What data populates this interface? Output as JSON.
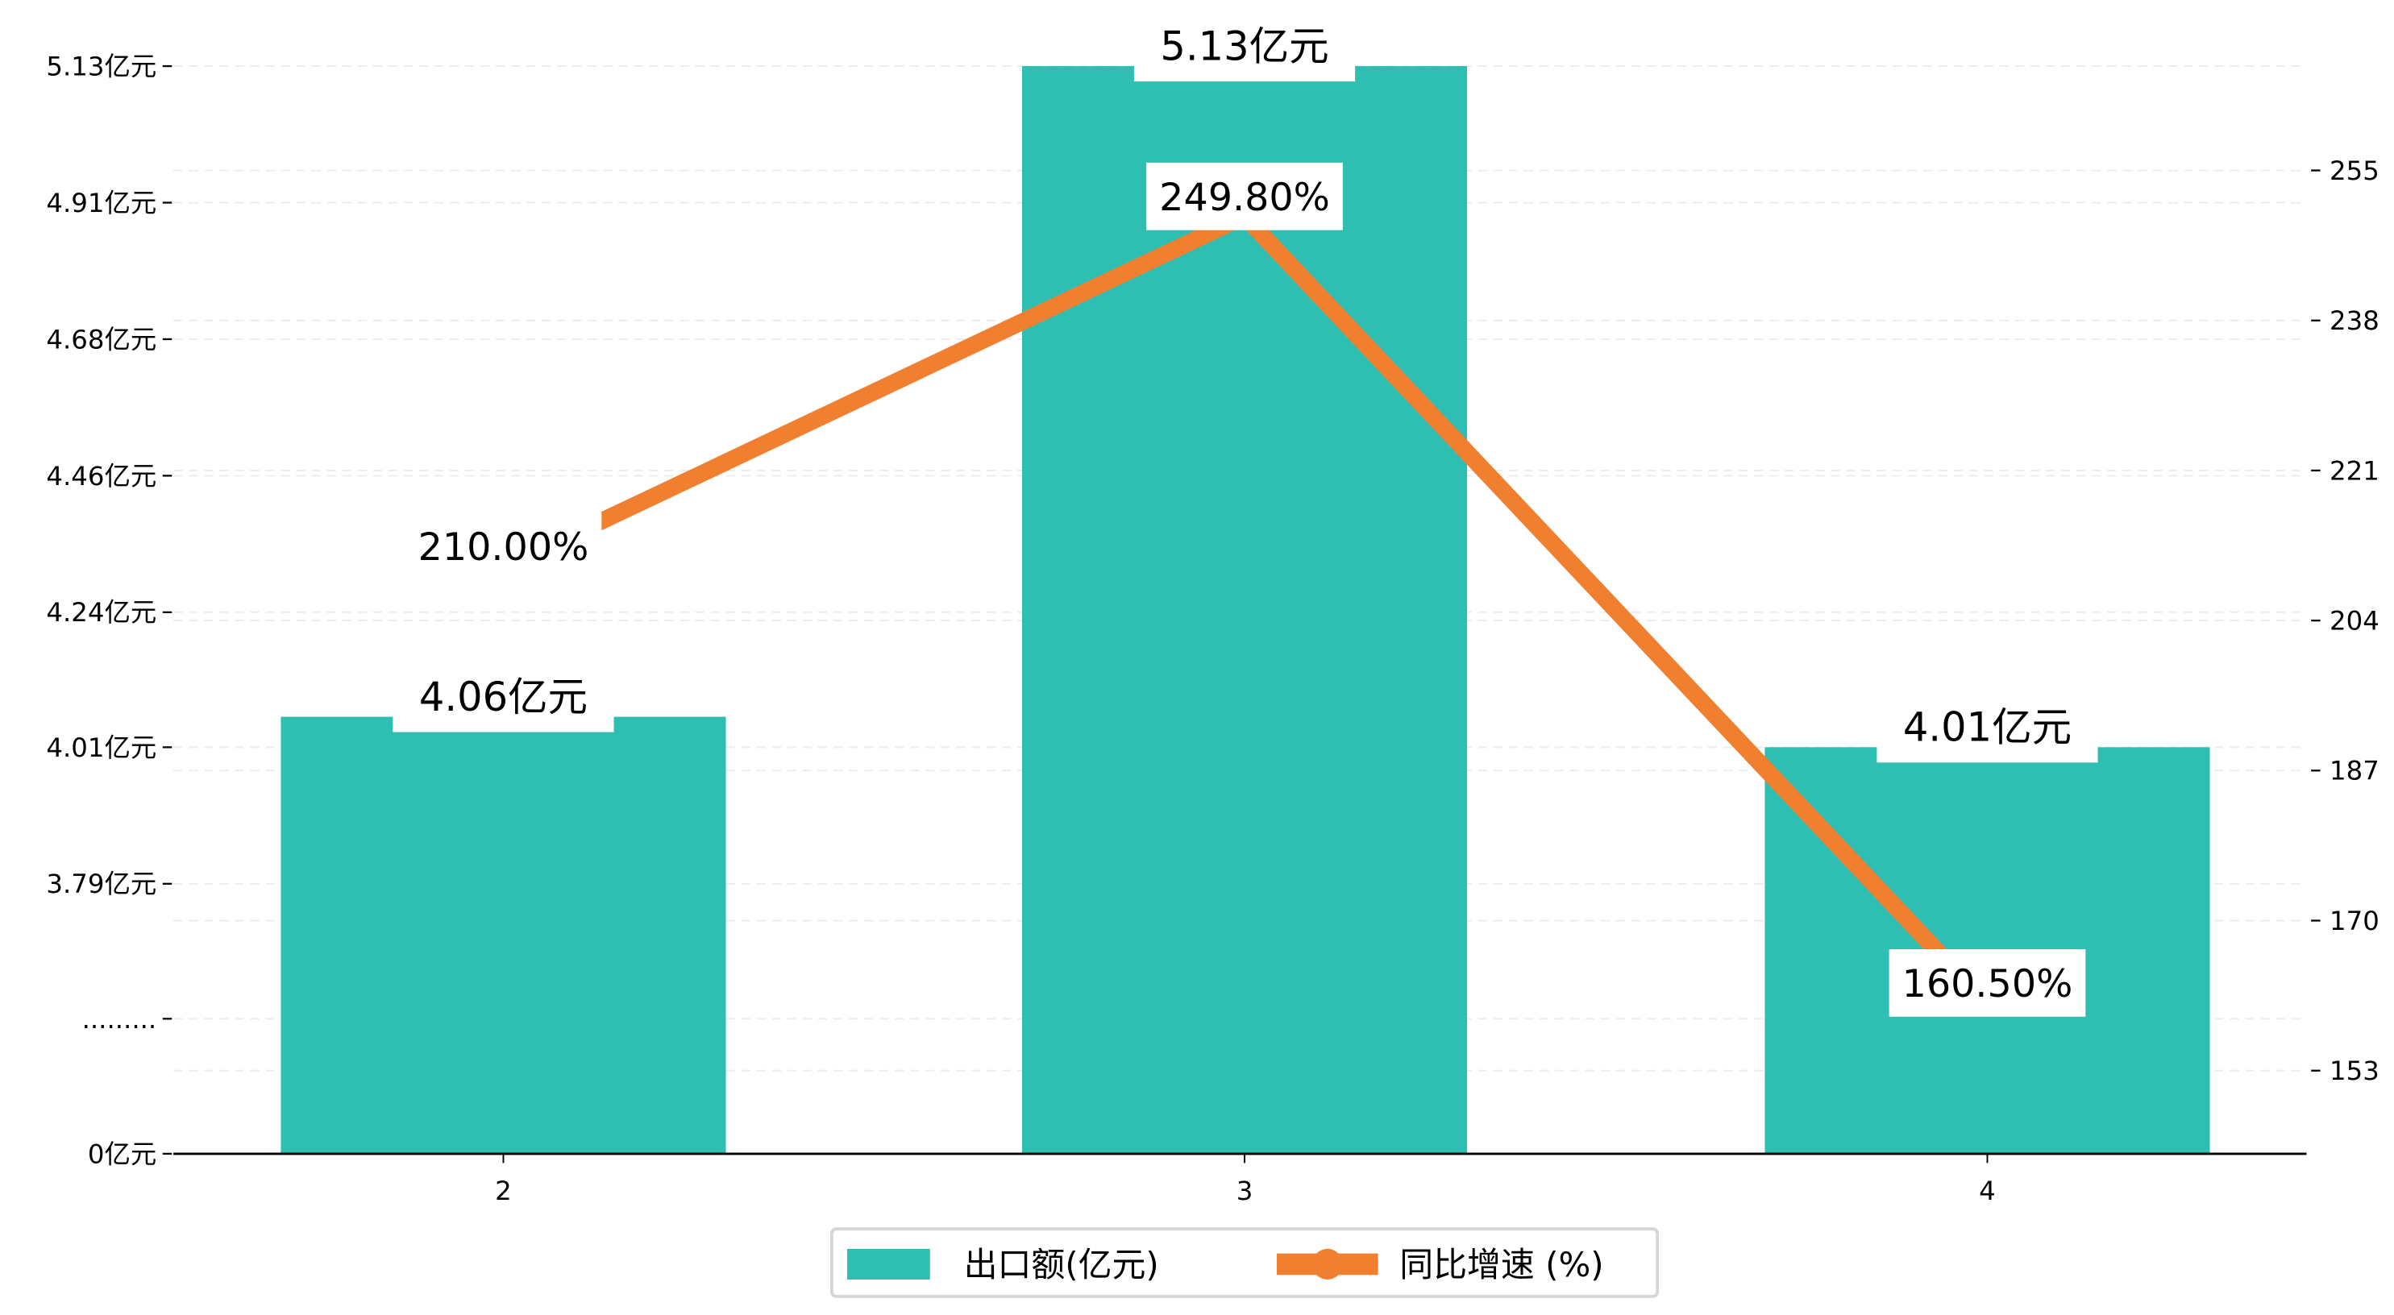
{
  "chart_data": {
    "type": "bar+line",
    "categories": [
      "2",
      "3",
      "4"
    ],
    "series": [
      {
        "name": "出口额(亿元)",
        "type": "bar",
        "axis": "left",
        "values": [
          4.06,
          5.13,
          4.01
        ],
        "labels": [
          "4.06亿元",
          "5.13亿元",
          "4.01亿元"
        ],
        "color": "#1abcac"
      },
      {
        "name": "同比增速 (%)",
        "type": "line",
        "axis": "right",
        "values": [
          210.0,
          249.8,
          160.5
        ],
        "labels": [
          "210.00%",
          "249.80%",
          "160.50%"
        ],
        "color": "#f08030"
      }
    ],
    "left_axis": {
      "ticks": [
        {
          "value": 5.13,
          "label": "5.13亿元"
        },
        {
          "value": 4.91,
          "label": "4.91亿元"
        },
        {
          "value": 4.68,
          "label": "4.68亿元"
        },
        {
          "value": 4.46,
          "label": "4.46亿元"
        },
        {
          "value": 4.24,
          "label": "4.24亿元"
        },
        {
          "value": 4.01,
          "label": "4.01亿元"
        },
        {
          "value": 3.79,
          "label": "3.79亿元"
        },
        {
          "value": null,
          "label": "........."
        },
        {
          "value": 0,
          "label": "0亿元"
        }
      ],
      "broken": true
    },
    "right_axis": {
      "ticks": [
        255,
        238,
        221,
        204,
        187,
        170,
        153
      ],
      "range": [
        145,
        264
      ]
    },
    "grid": "dashed-horizontal",
    "legend": {
      "placement": "bottom-center",
      "items": [
        "出口额(亿元)",
        "同比增速 (%)"
      ]
    }
  }
}
